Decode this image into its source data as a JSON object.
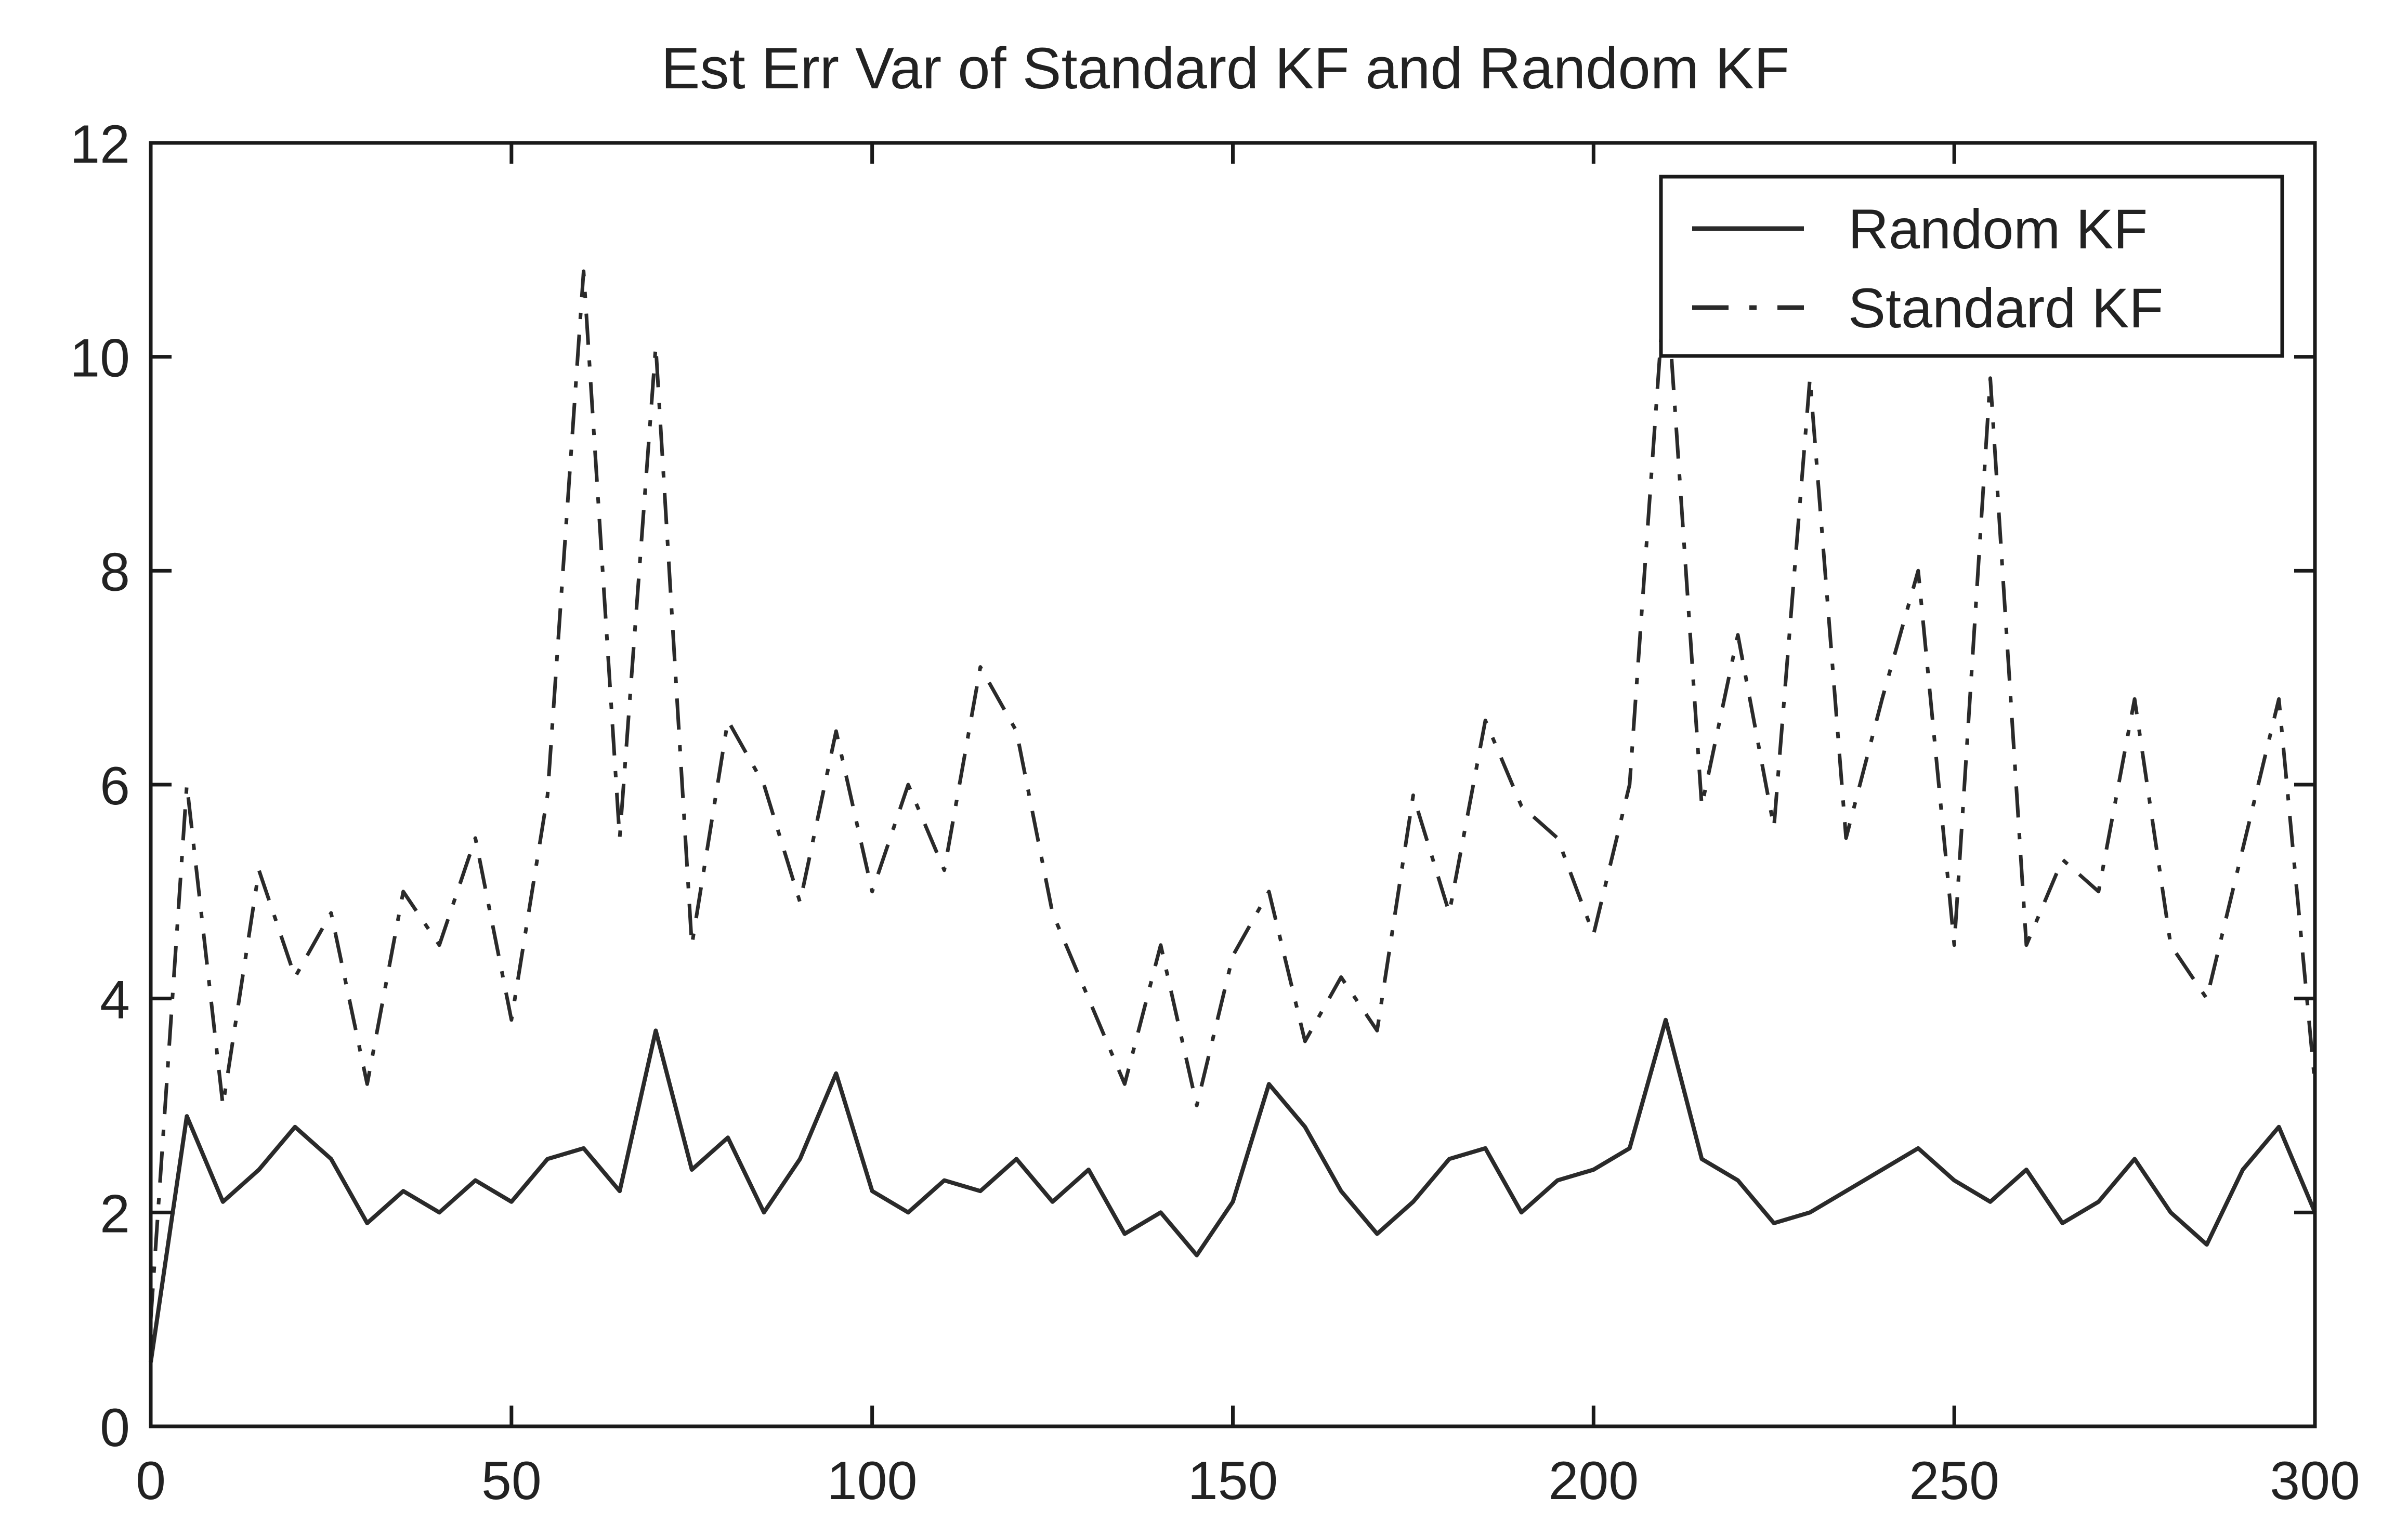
{
  "chart_data": {
    "type": "line",
    "title": "Est Err Var of Standard KF and Random KF",
    "xlabel": "",
    "ylabel": "",
    "xlim": [
      0,
      300
    ],
    "ylim": [
      0,
      12
    ],
    "xticks": [
      0,
      50,
      100,
      150,
      200,
      250,
      300
    ],
    "xtick_labels": [
      "0",
      "50",
      "100",
      "150",
      "200",
      "250",
      "300"
    ],
    "yticks": [
      0,
      2,
      4,
      6,
      8,
      10,
      12
    ],
    "ytick_labels": [
      "0",
      "2",
      "4",
      "6",
      "8",
      "10",
      "12"
    ],
    "grid": false,
    "legend_position": "top-right",
    "colors": {
      "line": "#2a2a2a",
      "axis": "#1a1a1a",
      "background": "#ffffff"
    },
    "x": [
      0,
      5,
      10,
      15,
      20,
      25,
      30,
      35,
      40,
      45,
      50,
      55,
      60,
      65,
      70,
      75,
      80,
      85,
      90,
      95,
      100,
      105,
      110,
      115,
      120,
      125,
      130,
      135,
      140,
      145,
      150,
      155,
      160,
      165,
      170,
      175,
      180,
      185,
      190,
      195,
      200,
      205,
      210,
      215,
      220,
      225,
      230,
      235,
      240,
      245,
      250,
      255,
      260,
      265,
      270,
      275,
      280,
      285,
      290,
      295,
      300
    ],
    "series": [
      {
        "name": "Random KF",
        "style": "solid",
        "values": [
          0.6,
          2.9,
          2.1,
          2.4,
          2.8,
          2.5,
          1.9,
          2.2,
          2.0,
          2.3,
          2.1,
          2.5,
          2.6,
          2.2,
          3.7,
          2.4,
          2.7,
          2.0,
          2.5,
          3.3,
          2.2,
          2.0,
          2.3,
          2.2,
          2.5,
          2.1,
          2.4,
          1.8,
          2.0,
          1.6,
          2.1,
          3.2,
          2.8,
          2.2,
          1.8,
          2.1,
          2.5,
          2.6,
          2.0,
          2.3,
          2.4,
          2.6,
          3.8,
          2.5,
          2.3,
          1.9,
          2.0,
          2.2,
          2.4,
          2.6,
          2.3,
          2.1,
          2.4,
          1.9,
          2.1,
          2.5,
          2.0,
          1.7,
          2.4,
          2.8,
          2.0
        ]
      },
      {
        "name": "Standard KF",
        "style": "dash-dot",
        "values": [
          1.0,
          6.0,
          3.0,
          5.2,
          4.2,
          4.8,
          3.2,
          5.0,
          4.5,
          5.5,
          3.8,
          5.9,
          10.8,
          5.5,
          10.1,
          4.5,
          6.6,
          6.0,
          4.9,
          6.5,
          5.0,
          6.0,
          5.2,
          7.1,
          6.5,
          4.8,
          4.0,
          3.2,
          4.5,
          3.0,
          4.4,
          5.0,
          3.6,
          4.2,
          3.7,
          5.9,
          4.8,
          6.6,
          5.8,
          5.5,
          4.6,
          6.0,
          10.8,
          5.8,
          7.4,
          5.6,
          9.8,
          5.5,
          6.8,
          8.0,
          4.5,
          9.8,
          4.5,
          5.3,
          5.0,
          6.8,
          4.5,
          4.0,
          5.4,
          6.8,
          3.2
        ]
      }
    ]
  }
}
